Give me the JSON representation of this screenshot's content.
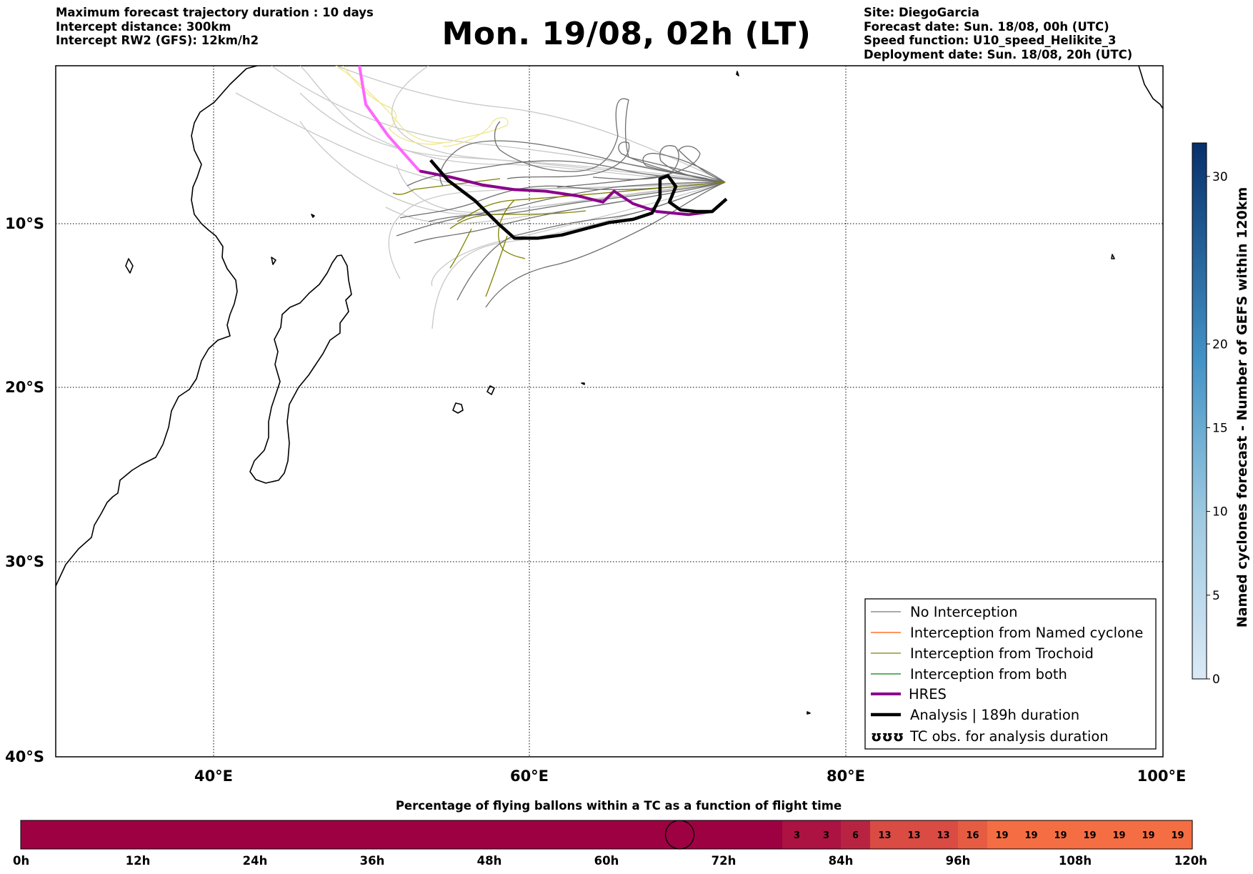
{
  "header": {
    "title": "Mon. 19/08, 02h (LT)",
    "left": [
      "Maximum forecast trajectory duration : 10 days",
      "Intercept distance: 300km",
      "Intercept RW2 (GFS):  12km/h2"
    ],
    "right": [
      "Site: DiegoGarcia",
      "Forecast date: Sun. 18/08, 00h (UTC)",
      "Speed function: U10_speed_Helikite_3",
      "Deployment date: Sun. 18/08, 20h (UTC)"
    ]
  },
  "chart_data": [
    {
      "type": "map-trajectories",
      "lon_range": [
        30,
        100
      ],
      "lat_range": [
        -40,
        1
      ],
      "grid": true,
      "x_ticks": [
        "40°E",
        "60°E",
        "80°E",
        "100°E"
      ],
      "y_ticks": [
        "10°S",
        "20°S",
        "30°S",
        "40°S"
      ],
      "legend_position": "lower-right",
      "legend": [
        {
          "label": "No Interception",
          "color": "#777777"
        },
        {
          "label": "Interception from Named cyclone",
          "color": "#ff5500"
        },
        {
          "label": "Interception from Trochoid",
          "color": "#808000"
        },
        {
          "label": "Interception from both",
          "color": "#008000"
        },
        {
          "label": "HRES",
          "color": "#8b008b"
        },
        {
          "label": "Analysis | 189h duration",
          "color": "#000000"
        },
        {
          "label": "TC obs. for analysis duration",
          "symbol": "ʊʊʊ",
          "color": "#000000"
        }
      ],
      "hres_track": [
        [
          49.2,
          1
        ],
        [
          49.6,
          -1.5
        ],
        [
          51,
          -3.5
        ],
        [
          53,
          -5.8
        ],
        [
          55,
          -6.2
        ],
        [
          57,
          -6.7
        ],
        [
          59,
          -7
        ],
        [
          61,
          -7.1
        ],
        [
          63,
          -7.4
        ],
        [
          64.6,
          -7.8
        ],
        [
          65.3,
          -7.1
        ],
        [
          66.5,
          -7.9
        ],
        [
          68,
          -8.4
        ],
        [
          70,
          -8.6
        ],
        [
          71.5,
          -8.4
        ],
        [
          72.4,
          -7.6
        ]
      ],
      "analysis_track": [
        [
          53.7,
          -5.1
        ],
        [
          54.8,
          -6.4
        ],
        [
          56.5,
          -7.7
        ],
        [
          58,
          -9.2
        ],
        [
          59,
          -10.1
        ],
        [
          60.5,
          -10.1
        ],
        [
          62,
          -9.9
        ],
        [
          63.5,
          -9.5
        ],
        [
          65,
          -9.1
        ],
        [
          66.5,
          -8.9
        ],
        [
          67.7,
          -8.5
        ],
        [
          68.2,
          -7.5
        ],
        [
          68.2,
          -6.3
        ],
        [
          68.7,
          -6.1
        ],
        [
          69.2,
          -6.8
        ],
        [
          68.8,
          -7.8
        ],
        [
          69.5,
          -8.3
        ],
        [
          70.5,
          -8.4
        ],
        [
          71.5,
          -8.4
        ],
        [
          72.4,
          -7.6
        ]
      ],
      "colorbar": {
        "label": "Named cyclones forecast - Number of GEFS within 120km",
        "ticks": [
          0,
          5,
          10,
          15,
          20,
          30
        ],
        "range": [
          0,
          32
        ],
        "color_low": "#dbe9f6",
        "color_high": "#08306b"
      }
    },
    {
      "type": "heatmap",
      "title": "Percentage of flying ballons within a TC as a function of flight time",
      "x_ticks": [
        "0h",
        "12h",
        "24h",
        "36h",
        "48h",
        "60h",
        "72h",
        "84h",
        "96h",
        "108h",
        "120h"
      ],
      "x_range": [
        0,
        120
      ],
      "step_hours": 3,
      "values": [
        0,
        0,
        0,
        0,
        0,
        0,
        0,
        0,
        0,
        0,
        0,
        0,
        0,
        0,
        0,
        0,
        0,
        0,
        0,
        0,
        0,
        0,
        0,
        0,
        0,
        0,
        3,
        3,
        6,
        13,
        13,
        13,
        16,
        19,
        19,
        19,
        19,
        19,
        19,
        19
      ],
      "marker_hour": 67.5,
      "color_low": "#9e0142",
      "color_high": "#f46d43"
    }
  ]
}
